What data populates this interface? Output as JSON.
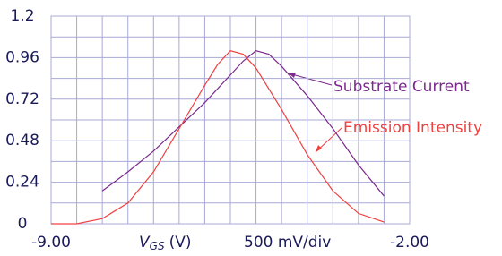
{
  "chart_data": {
    "type": "line",
    "x_label": {
      "symbol": "V",
      "subscript": "GS",
      "unit": "(V)"
    },
    "scale_note": "500 mV/div",
    "xlim": [
      -9,
      -2
    ],
    "xticks": [
      {
        "value": -9,
        "label": "-9.00"
      },
      {
        "value": -2,
        "label": "-2.00"
      }
    ],
    "x_grid": [
      -8.5,
      -8,
      -7.5,
      -7,
      -6.5,
      -6,
      -5.5,
      -5,
      -4.5,
      -4,
      -3.5,
      -3,
      -2.5
    ],
    "ylim": [
      0,
      1.2
    ],
    "yticks": [
      0,
      0.24,
      0.48,
      0.72,
      0.96,
      1.2
    ],
    "y_grid": [
      0.12,
      0.36,
      0.6,
      0.84,
      1.08
    ],
    "grid": true,
    "series": [
      {
        "name": "Substrate Current",
        "color": "#7a2a8c",
        "x": [
          -8,
          -7.5,
          -7,
          -6.5,
          -6,
          -5.5,
          -5.25,
          -5,
          -4.75,
          -4.5,
          -4,
          -3.5,
          -3,
          -2.5
        ],
        "values": [
          0.19,
          0.3,
          0.42,
          0.56,
          0.7,
          0.86,
          0.94,
          1.0,
          0.98,
          0.91,
          0.74,
          0.55,
          0.34,
          0.16
        ]
      },
      {
        "name": "Emission Intensity",
        "color": "#f04040",
        "x": [
          -9,
          -8.5,
          -8,
          -7.5,
          -7,
          -6.5,
          -6,
          -5.75,
          -5.5,
          -5.25,
          -5,
          -4.5,
          -4,
          -3.5,
          -3,
          -2.5
        ],
        "values": [
          0,
          0,
          0.03,
          0.12,
          0.3,
          0.55,
          0.8,
          0.92,
          1.0,
          0.98,
          0.9,
          0.66,
          0.4,
          0.19,
          0.06,
          0.01
        ]
      }
    ]
  }
}
